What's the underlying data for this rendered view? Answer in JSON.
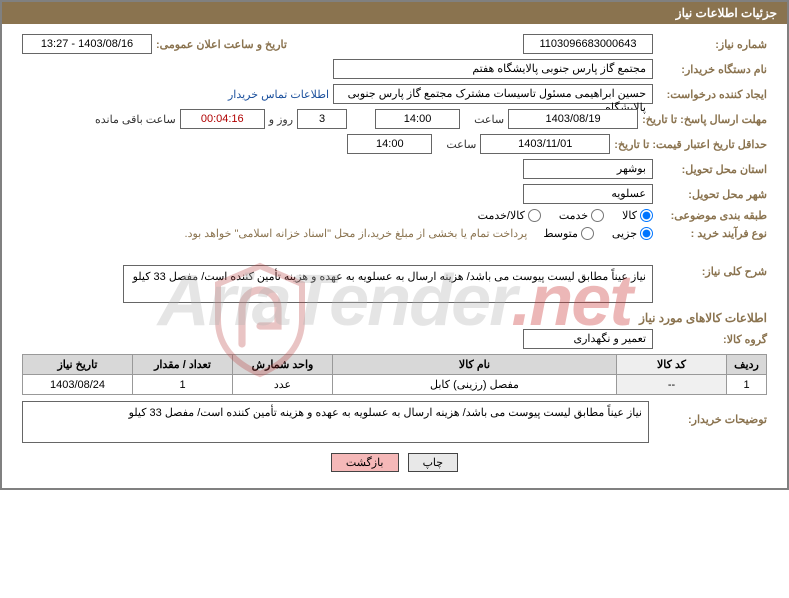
{
  "header": {
    "title": "جزئیات اطلاعات نیاز"
  },
  "fields": {
    "need_no_label": "شماره نیاز:",
    "need_no": "1103096683000643",
    "announce_label": "تاریخ و ساعت اعلان عمومی:",
    "announce": "1403/08/16 - 13:27",
    "buyer_org_label": "نام دستگاه خریدار:",
    "buyer_org": "مجتمع گاز پارس جنوبی  پالایشگاه هفتم",
    "requester_label": "ایجاد کننده درخواست:",
    "requester": "حسین ابراهیمی مسئول تاسیسات مشترک مجتمع گاز پارس جنوبی  پالایشگاه",
    "contact_link": "اطلاعات تماس خریدار",
    "deadline_resp_label": "مهلت ارسال پاسخ:",
    "until_label": "تا تاریخ:",
    "deadline_date": "1403/08/19",
    "hour_label": "ساعت",
    "deadline_time": "14:00",
    "days": "3",
    "days_and": "روز و",
    "remain": "00:04:16",
    "remain_suffix": "ساعت باقی مانده",
    "validity_label": "حداقل تاریخ اعتبار قیمت:",
    "validity_date": "1403/11/01",
    "validity_time": "14:00",
    "province_label": "استان محل تحویل:",
    "province": "بوشهر",
    "city_label": "شهر محل تحویل:",
    "city": "عسلویه",
    "category_label": "طبقه بندی موضوعی:",
    "cat_goods": "کالا",
    "cat_service": "خدمت",
    "cat_both": "کالا/خدمت",
    "process_label": "نوع فرآیند خرید :",
    "proc_partial": "جزیی",
    "proc_medium": "متوسط",
    "process_note": "پرداخت تمام یا بخشی از مبلغ خرید،از محل \"اسناد خزانه اسلامی\" خواهد بود.",
    "overview_label": "شرح کلی نیاز:",
    "overview_text": "نیاز عیناً مطابق لیست پیوست می باشد/ هزینه ارسال به عسلویه به عهده و هزینه تأمین کننده است/ مفصل 33 کیلو",
    "items_title": "اطلاعات کالاهای مورد نیاز",
    "group_label": "گروه کالا:",
    "group": "تعمیر و نگهداری",
    "buyer_desc_label": "توضیحات خریدار:",
    "buyer_desc": "نیاز عیناً مطابق لیست پیوست می باشد/ هزینه ارسال به عسلویه به عهده و هزینه تأمین کننده است/ مفصل 33 کیلو"
  },
  "table": {
    "headers": {
      "idx": "ردیف",
      "code": "کد کالا",
      "name": "نام کالا",
      "unit": "واحد شمارش",
      "qty": "تعداد / مقدار",
      "date": "تاریخ نیاز"
    },
    "rows": [
      {
        "idx": "1",
        "code": "--",
        "name": "مفصل (رزینی) کابل",
        "unit": "عدد",
        "qty": "1",
        "date": "1403/08/24"
      }
    ]
  },
  "buttons": {
    "print": "چاپ",
    "back": "بازگشت"
  },
  "watermark": {
    "text1": "AriaTender",
    "text2": ".net"
  },
  "colors": {
    "brand": "#8a734f",
    "border": "#808080",
    "th_bg": "#d8d8d8",
    "link": "#1a4f9c",
    "btn_back": "#f5b8b8"
  }
}
